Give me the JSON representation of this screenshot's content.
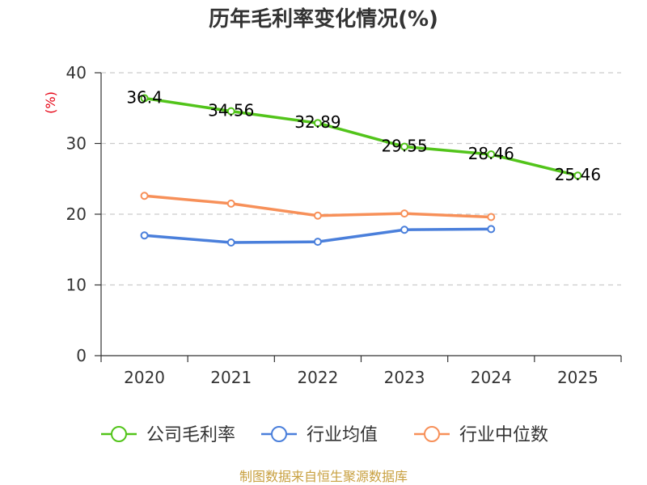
{
  "chart_data": {
    "type": "line",
    "title": "历年毛利率变化情况(%)",
    "ylabel": "(%)",
    "xlabel": "",
    "categories": [
      "2020",
      "2021",
      "2022",
      "2023",
      "2024",
      "2025"
    ],
    "ylim": [
      0,
      40
    ],
    "yticks": [
      0,
      10,
      20,
      30,
      40
    ],
    "grid": true,
    "legend_position": "bottom",
    "series": [
      {
        "name": "公司毛利率",
        "color": "#52c41a",
        "values": [
          36.4,
          34.56,
          32.89,
          29.55,
          28.46,
          25.46
        ],
        "labels": [
          "36.4",
          "34.56",
          "32.89",
          "29.55",
          "28.46",
          "25.46"
        ]
      },
      {
        "name": "行业均值",
        "color": "#4a7fdb",
        "values": [
          17.0,
          16.0,
          16.1,
          17.8,
          17.9,
          null
        ]
      },
      {
        "name": "行业中位数",
        "color": "#f79059",
        "values": [
          22.6,
          21.5,
          19.8,
          20.1,
          19.6,
          null
        ]
      }
    ]
  },
  "source": "制图数据来自恒生聚源数据库"
}
